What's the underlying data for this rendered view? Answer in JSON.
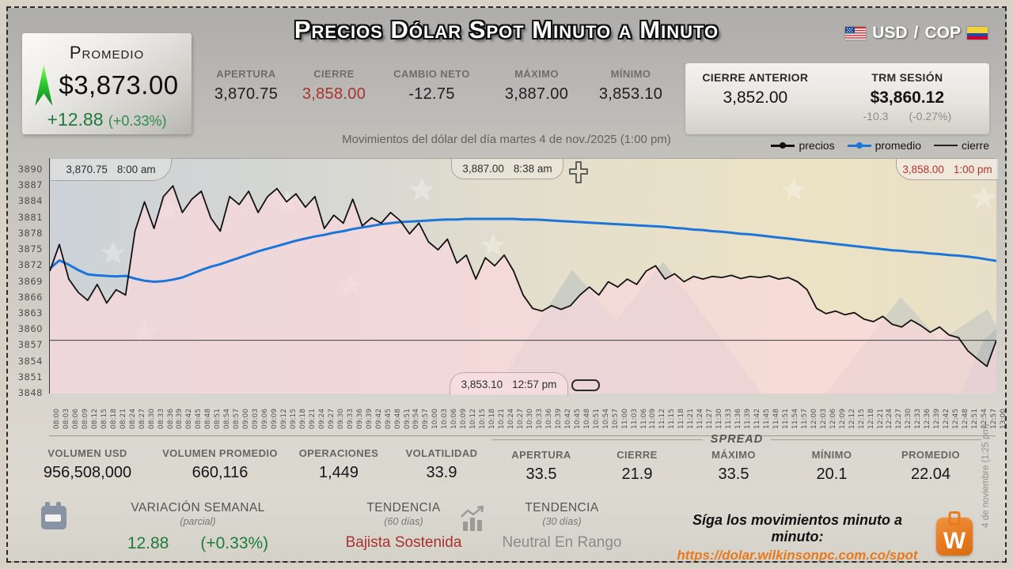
{
  "header": {
    "title": "Precios Dólar Spot Minuto a Minuto",
    "pair": {
      "base": "USD",
      "sep": "/",
      "quote": "COP"
    },
    "promedio_card": {
      "label": "Promedio",
      "value": "$3,873.00",
      "change": "+12.88",
      "change_pct": "(+0.33%)"
    },
    "stats": [
      {
        "label": "APERTURA",
        "value": "3,870.75"
      },
      {
        "label": "CIERRE",
        "value": "3,858.00"
      },
      {
        "label": "CAMBIO NETO",
        "value": "-12.75"
      },
      {
        "label": "MÁXIMO",
        "value": "3,887.00"
      },
      {
        "label": "MÍNIMO",
        "value": "3,853.10"
      }
    ],
    "panel": {
      "cierre_anterior_label": "CIERRE ANTERIOR",
      "cierre_anterior_value": "3,852.00",
      "trm_label": "TRM SESIÓN",
      "trm_value": "$3,860.12",
      "trm_change": "-10.3",
      "trm_change_pct": "(-0.27%)"
    },
    "subtitle": "Movimientos del dólar del día martes 4 de nov./2025 (1:00 pm)",
    "legend": [
      {
        "label": "precios"
      },
      {
        "label": "promedio"
      },
      {
        "label": "cierre"
      }
    ]
  },
  "annotations": {
    "open": {
      "value": "3,870.75",
      "time": "8:00 am"
    },
    "high": {
      "value": "3,887.00",
      "time": "8:38 am"
    },
    "close": {
      "value": "3,858.00",
      "time": "1:00 pm"
    },
    "low": {
      "value": "3,853.10",
      "time": "12:57 pm"
    }
  },
  "chart_data": {
    "type": "line",
    "title": "Movimientos del dólar del día martes 4 de nov./2025 (1:00 pm)",
    "ylim": [
      3848,
      3890
    ],
    "y_ticks": [
      3890,
      3887,
      3884,
      3881,
      3878,
      3875,
      3872,
      3869,
      3866,
      3863,
      3860,
      3857,
      3854,
      3851,
      3848
    ],
    "x": [
      "08:00",
      "08:03",
      "08:06",
      "08:09",
      "08:12",
      "08:15",
      "08:18",
      "08:21",
      "08:24",
      "08:27",
      "08:30",
      "08:33",
      "08:36",
      "08:39",
      "08:42",
      "08:45",
      "08:48",
      "08:51",
      "08:54",
      "08:57",
      "09:00",
      "09:03",
      "09:06",
      "09:09",
      "09:12",
      "09:15",
      "09:18",
      "09:21",
      "09:24",
      "09:27",
      "09:30",
      "09:33",
      "09:36",
      "09:39",
      "09:42",
      "09:45",
      "09:48",
      "09:51",
      "09:54",
      "09:57",
      "10:00",
      "10:03",
      "10:06",
      "10:09",
      "10:12",
      "10:15",
      "10:18",
      "10:21",
      "10:24",
      "10:27",
      "10:30",
      "10:33",
      "10:36",
      "10:39",
      "10:42",
      "10:45",
      "10:48",
      "10:51",
      "10:54",
      "10:57",
      "11:00",
      "11:03",
      "11:06",
      "11:09",
      "11:12",
      "11:15",
      "11:18",
      "11:21",
      "11:24",
      "11:27",
      "11:30",
      "11:33",
      "11:36",
      "11:39",
      "11:42",
      "11:45",
      "11:48",
      "11:51",
      "11:54",
      "11:57",
      "12:00",
      "12:03",
      "12:06",
      "12:09",
      "12:12",
      "12:15",
      "12:18",
      "12:21",
      "12:24",
      "12:27",
      "12:30",
      "12:33",
      "12:36",
      "12:39",
      "12:42",
      "12:45",
      "12:48",
      "12:51",
      "12:54",
      "12:57",
      "13:00"
    ],
    "series": [
      {
        "name": "precios",
        "color": "#111111",
        "values": [
          3871.0,
          3876.0,
          3869.5,
          3867.0,
          3865.5,
          3868.5,
          3865.0,
          3867.5,
          3866.5,
          3878.5,
          3884.0,
          3879.0,
          3885.0,
          3887.0,
          3882.0,
          3884.5,
          3886.0,
          3881.0,
          3878.5,
          3885.0,
          3883.5,
          3886.0,
          3882.0,
          3885.0,
          3886.5,
          3884.0,
          3885.5,
          3883.0,
          3885.0,
          3879.0,
          3881.5,
          3880.0,
          3884.5,
          3879.5,
          3881.0,
          3880.0,
          3882.0,
          3880.5,
          3878.0,
          3880.0,
          3876.5,
          3875.0,
          3877.0,
          3872.5,
          3874.0,
          3869.5,
          3873.5,
          3872.0,
          3874.0,
          3871.0,
          3866.5,
          3864.0,
          3863.5,
          3864.5,
          3863.8,
          3864.5,
          3866.5,
          3868.0,
          3866.5,
          3869.0,
          3868.0,
          3869.5,
          3868.5,
          3871.0,
          3872.0,
          3869.5,
          3870.5,
          3869.0,
          3870.0,
          3869.5,
          3870.0,
          3869.8,
          3870.2,
          3869.6,
          3870.0,
          3869.8,
          3870.1,
          3869.5,
          3869.8,
          3869.0,
          3867.5,
          3864.0,
          3863.0,
          3863.5,
          3862.8,
          3863.2,
          3862.0,
          3861.5,
          3862.5,
          3861.0,
          3860.5,
          3861.8,
          3860.8,
          3859.5,
          3860.5,
          3859.0,
          3858.5,
          3856.0,
          3854.5,
          3853.1,
          3858.0
        ]
      },
      {
        "name": "promedio",
        "color": "#1c75d8",
        "values": [
          3871.5,
          3873.0,
          3872.2,
          3871.2,
          3870.4,
          3870.2,
          3870.1,
          3870.0,
          3870.1,
          3869.6,
          3869.2,
          3869.0,
          3869.1,
          3869.4,
          3869.8,
          3870.5,
          3871.2,
          3871.8,
          3872.3,
          3872.9,
          3873.5,
          3874.1,
          3874.7,
          3875.2,
          3875.7,
          3876.2,
          3876.7,
          3877.1,
          3877.5,
          3877.8,
          3878.2,
          3878.5,
          3878.9,
          3879.2,
          3879.5,
          3879.8,
          3880.0,
          3880.2,
          3880.3,
          3880.4,
          3880.5,
          3880.6,
          3880.7,
          3880.7,
          3880.8,
          3880.8,
          3880.8,
          3880.8,
          3880.8,
          3880.8,
          3880.7,
          3880.7,
          3880.6,
          3880.5,
          3880.4,
          3880.3,
          3880.2,
          3880.1,
          3880.0,
          3879.9,
          3879.8,
          3879.7,
          3879.6,
          3879.5,
          3879.4,
          3879.3,
          3879.1,
          3879.0,
          3878.8,
          3878.7,
          3878.5,
          3878.4,
          3878.2,
          3878.0,
          3877.9,
          3877.7,
          3877.5,
          3877.3,
          3877.1,
          3876.9,
          3876.7,
          3876.5,
          3876.3,
          3876.1,
          3875.9,
          3875.7,
          3875.5,
          3875.3,
          3875.1,
          3874.9,
          3874.8,
          3874.6,
          3874.5,
          3874.3,
          3874.2,
          3874.0,
          3873.9,
          3873.7,
          3873.5,
          3873.2,
          3872.9
        ]
      },
      {
        "name": "cierre",
        "color": "#333333",
        "value": 3858.0
      }
    ],
    "fill_color": "rgba(250,216,220,0.72)",
    "legend_position": "top-right"
  },
  "stats_bottom": {
    "left": [
      {
        "label": "VOLUMEN USD",
        "value": "956,508,000"
      },
      {
        "label": "VOLUMEN PROMEDIO",
        "value": "660,116"
      },
      {
        "label": "OPERACIONES",
        "value": "1,449"
      },
      {
        "label": "VOLATILIDAD",
        "value": "33.9"
      }
    ],
    "spread_label": "SPREAD",
    "spread": [
      {
        "label": "APERTURA",
        "value": "33.5"
      },
      {
        "label": "CIERRE",
        "value": "21.9"
      },
      {
        "label": "MÁXIMO",
        "value": "33.5"
      },
      {
        "label": "MÍNIMO",
        "value": "20.1"
      },
      {
        "label": "PROMEDIO",
        "value": "22.04"
      }
    ]
  },
  "footer": {
    "variacion": {
      "label": "VARIACIÓN SEMANAL",
      "sub": "(parcial)",
      "value": "12.88",
      "pct": "(+0.33%)"
    },
    "tendencia60": {
      "label": "TENDENCIA",
      "sub": "(60 días)",
      "value": "Bajista Sostenida"
    },
    "tendencia30": {
      "label": "TENDENCIA",
      "sub": "(30 días)",
      "value": "Neutral En Rango"
    },
    "cta": "Síga los movimientos minuto a minuto:",
    "url": "https://dolar.wilkinsonpc.com.co/spot"
  },
  "side_note": "4 de noviembre (1:25 pm)",
  "colors": {
    "accent_blue": "#1c75d8",
    "accent_green": "#1e7b3c",
    "accent_red": "#a8322e",
    "brand_orange": "#e8791e"
  }
}
